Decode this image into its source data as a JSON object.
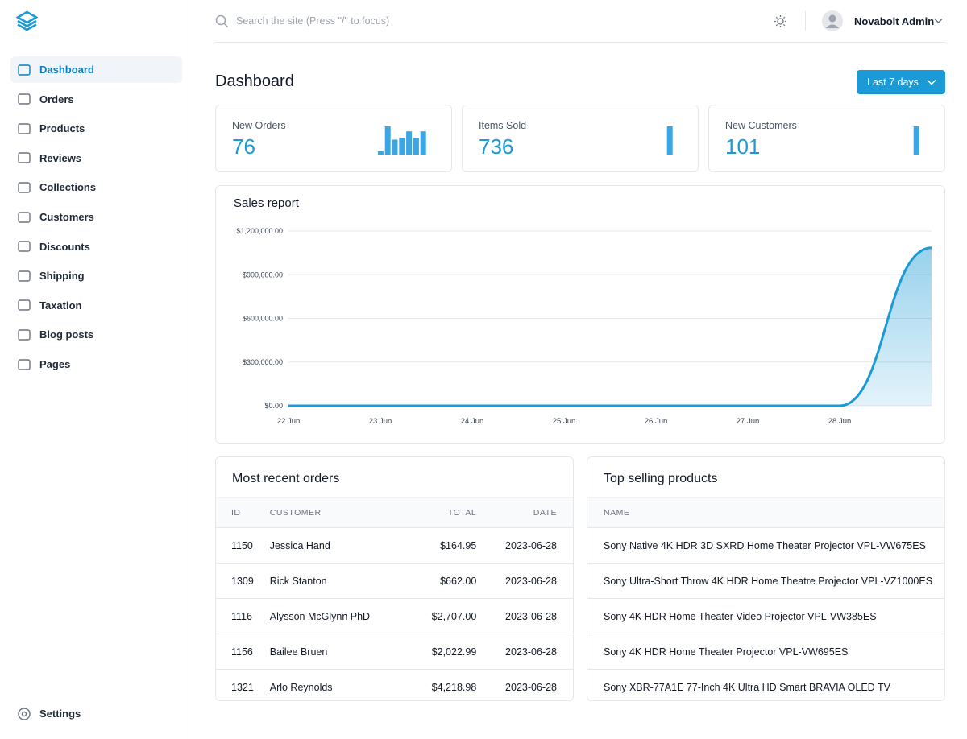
{
  "sidebar": {
    "nav": [
      "Dashboard",
      "Orders",
      "Products",
      "Reviews",
      "Collections",
      "Customers",
      "Discounts",
      "Shipping",
      "Taxation",
      "Blog posts",
      "Pages"
    ],
    "settings": "Settings"
  },
  "topbar": {
    "search_placeholder": "Search the site (Press \"/\" to focus)",
    "user": "Novabolt Admin"
  },
  "page_title": "Dashboard",
  "range_button": "Last 7 days",
  "stats": [
    {
      "label": "New Orders",
      "value": 76,
      "bars": [
        2,
        17,
        9,
        10,
        14,
        10,
        14
      ]
    },
    {
      "label": "Items Sold",
      "value": 736,
      "bars": [
        0,
        0,
        0,
        0,
        0,
        0,
        736
      ]
    },
    {
      "label": "New Customers",
      "value": 101,
      "bars": [
        0,
        0,
        0,
        0,
        0,
        0,
        101
      ]
    }
  ],
  "chart_data": {
    "type": "line",
    "title": "Sales report",
    "categories": [
      "22 Jun",
      "23 Jun",
      "24 Jun",
      "25 Jun",
      "26 Jun",
      "27 Jun",
      "28 Jun",
      null
    ],
    "values": [
      0,
      0,
      0,
      0,
      0,
      0,
      0,
      1085000
    ],
    "color": "#1b9ad6",
    "ylim": [
      0,
      1200000
    ],
    "yticks": [
      {
        "value": 0,
        "label": "$0.00"
      },
      {
        "value": 300000,
        "label": "$300,000.00"
      },
      {
        "value": 600000,
        "label": "$600,000.00"
      },
      {
        "value": 900000,
        "label": "$900,000.00"
      },
      {
        "value": 1200000,
        "label": "$1,200,000.00"
      }
    ],
    "grid": true
  },
  "recent_orders": {
    "title": "Most recent orders",
    "columns": [
      "ID",
      "CUSTOMER",
      "TOTAL",
      "DATE"
    ],
    "rows": [
      [
        "1150",
        "Jessica Hand",
        "$164.95",
        "2023-06-28"
      ],
      [
        "1309",
        "Rick Stanton",
        "$662.00",
        "2023-06-28"
      ],
      [
        "1116",
        "Alysson McGlynn PhD",
        "$2,707.00",
        "2023-06-28"
      ],
      [
        "1156",
        "Bailee Bruen",
        "$2,022.99",
        "2023-06-28"
      ],
      [
        "1321",
        "Arlo Reynolds",
        "$4,218.98",
        "2023-06-28"
      ]
    ]
  },
  "top_products": {
    "title": "Top selling products",
    "columns": [
      "NAME"
    ],
    "rows": [
      [
        "Sony Native 4K HDR 3D SXRD Home Theater Projector VPL-VW675ES"
      ],
      [
        "Sony Ultra-Short Throw 4K HDR Home Theatre Projector VPL-VZ1000ES"
      ],
      [
        "Sony 4K HDR Home Theater Video Projector VPL-VW385ES"
      ],
      [
        "Sony 4K HDR Home Theater Projector VPL-VW695ES"
      ],
      [
        "Sony XBR-77A1E 77-Inch 4K Ultra HD Smart BRAVIA OLED TV"
      ]
    ]
  }
}
